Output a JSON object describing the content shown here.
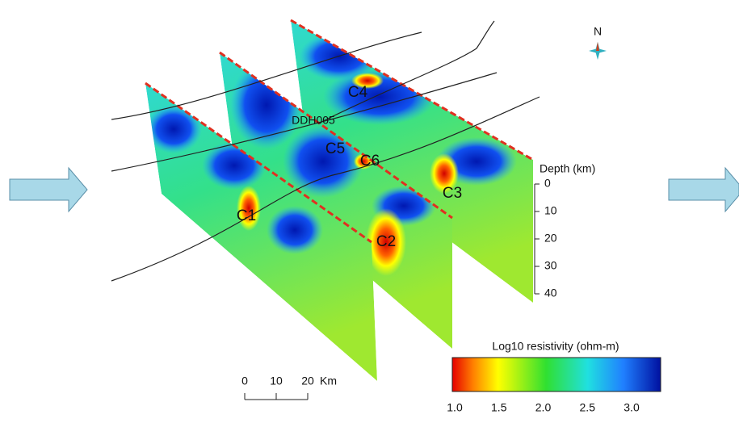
{
  "north": "N",
  "labels": [
    "C1",
    "C2",
    "C3",
    "C4",
    "C5",
    "C6"
  ],
  "borehole": "DDH005",
  "depth_axis": {
    "title": "Depth (km)",
    "ticks": [
      "0",
      "10",
      "20",
      "30",
      "40"
    ]
  },
  "scale_bar": {
    "ticks": [
      "0",
      "10",
      "20"
    ],
    "unit": "Km"
  },
  "colorbar": {
    "title": "Log10 resistivity (ohm-m)",
    "ticks": [
      "1.0",
      "1.5",
      "2.0",
      "2.5",
      "3.0"
    ]
  }
}
